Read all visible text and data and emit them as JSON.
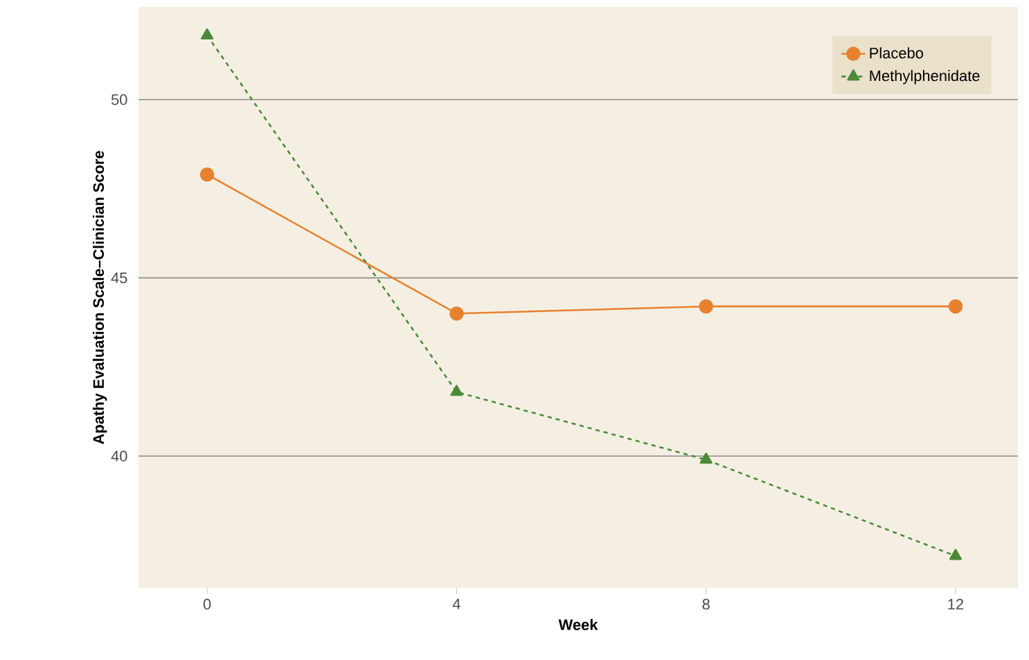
{
  "chart_data": {
    "type": "line",
    "xlabel": "Week",
    "ylabel": "Apathy Evaluation Scale–Clinician Score",
    "x": [
      0,
      4,
      8,
      12
    ],
    "series": [
      {
        "name": "Placebo",
        "color": "#e8812e",
        "values": [
          47.9,
          44.0,
          44.2,
          44.2
        ],
        "marker": "circle",
        "line_style": "solid"
      },
      {
        "name": "Methylphenidate",
        "color": "#4c8a3a",
        "values": [
          51.8,
          41.8,
          39.9,
          37.2
        ],
        "marker": "triangle",
        "line_style": "dashed"
      }
    ],
    "xlim": [
      -1.1,
      13
    ],
    "ylim": [
      36.3,
      52.6
    ],
    "xticks": [
      0,
      4,
      8,
      12
    ],
    "yticks": [
      40,
      45,
      50
    ],
    "grid": "y",
    "legend": "top right"
  }
}
